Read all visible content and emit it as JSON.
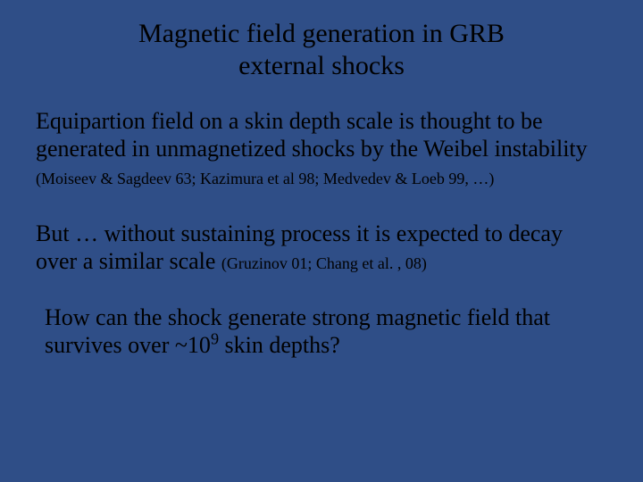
{
  "slide": {
    "background_color": "#2f4e87",
    "text_color": "#000000",
    "font_family": "Times New Roman",
    "title": {
      "line1": "Magnetic field generation in GRB",
      "line2": "external shocks",
      "fontsize": 30,
      "align": "center"
    },
    "para1": {
      "main": "Equipartion field on a skin depth scale is thought to be generated in unmagnetized shocks by the Weibel instability",
      "cite": "(Moiseev & Sagdeev 63; Kazimura et al 98; Medvedev & Loeb 99, …)",
      "fontsize_main": 26,
      "fontsize_cite": 18
    },
    "para2": {
      "main": "But … without sustaining process it is expected to decay over a similar scale",
      "cite": "(Gruzinov 01; Chang et al. , 08)",
      "fontsize_main": 26,
      "fontsize_cite": 18
    },
    "closing": {
      "pre": "How can the shock generate strong magnetic field that survives over ~10",
      "exp": "9",
      "post": " skin depths?",
      "fontsize": 26
    }
  }
}
